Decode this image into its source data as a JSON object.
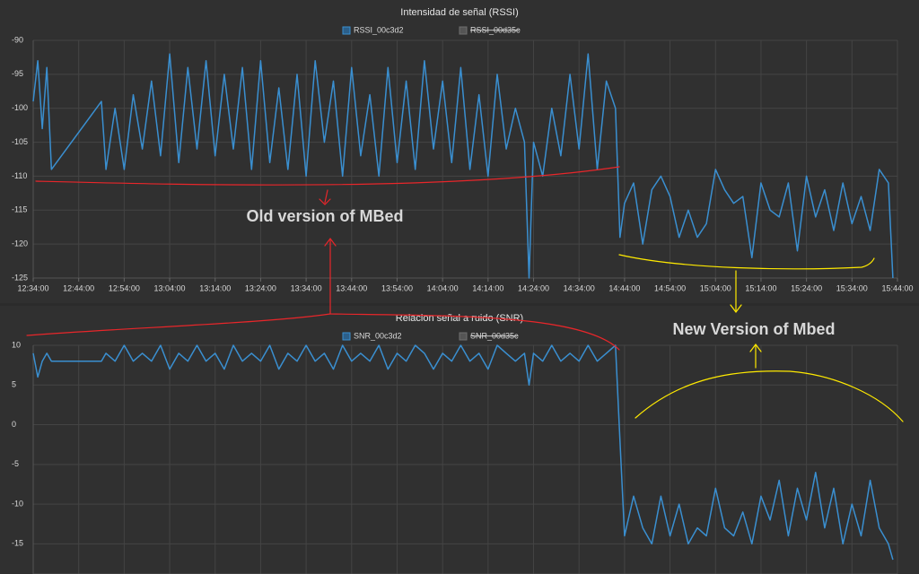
{
  "chart_data": [
    {
      "type": "line",
      "title": "Intensidad de señal (RSSI)",
      "x": [
        "12:34:00",
        "12:35:00",
        "12:36:00",
        "12:37:00",
        "12:38:00",
        "12:49:00",
        "12:50:00",
        "12:52:00",
        "12:54:00",
        "12:56:00",
        "12:58:00",
        "13:00:00",
        "13:02:00",
        "13:04:00",
        "13:06:00",
        "13:08:00",
        "13:10:00",
        "13:12:00",
        "13:14:00",
        "13:16:00",
        "13:18:00",
        "13:20:00",
        "13:22:00",
        "13:24:00",
        "13:26:00",
        "13:28:00",
        "13:30:00",
        "13:32:00",
        "13:34:00",
        "13:36:00",
        "13:38:00",
        "13:40:00",
        "13:42:00",
        "13:44:00",
        "13:46:00",
        "13:48:00",
        "13:50:00",
        "13:52:00",
        "13:54:00",
        "13:56:00",
        "13:58:00",
        "14:00:00",
        "14:02:00",
        "14:04:00",
        "14:06:00",
        "14:08:00",
        "14:10:00",
        "14:12:00",
        "14:14:00",
        "14:16:00",
        "14:18:00",
        "14:20:00",
        "14:22:00",
        "14:23:00",
        "14:24:00",
        "14:26:00",
        "14:28:00",
        "14:30:00",
        "14:32:00",
        "14:34:00",
        "14:36:00",
        "14:38:00",
        "14:40:00",
        "14:42:00",
        "14:43:00",
        "14:44:00",
        "14:46:00",
        "14:48:00",
        "14:50:00",
        "14:52:00",
        "14:54:00",
        "14:56:00",
        "14:58:00",
        "15:00:00",
        "15:02:00",
        "15:04:00",
        "15:06:00",
        "15:08:00",
        "15:10:00",
        "15:12:00",
        "15:14:00",
        "15:16:00",
        "15:18:00",
        "15:20:00",
        "15:22:00",
        "15:24:00",
        "15:26:00",
        "15:28:00",
        "15:30:00",
        "15:32:00",
        "15:34:00",
        "15:36:00",
        "15:38:00",
        "15:40:00",
        "15:42:00",
        "15:43:00"
      ],
      "series": [
        {
          "name": "RSSI_00c3d2",
          "color": "#3a8fd0",
          "values": [
            -99,
            -93,
            -103,
            -94,
            -109,
            -99,
            -109,
            -100,
            -109,
            -98,
            -106,
            -96,
            -107,
            -92,
            -108,
            -94,
            -106,
            -93,
            -107,
            -95,
            -106,
            -94,
            -109,
            -93,
            -108,
            -97,
            -109,
            -95,
            -110,
            -93,
            -105,
            -96,
            -110,
            -94,
            -107,
            -98,
            -110,
            -94,
            -108,
            -96,
            -109,
            -93,
            -106,
            -96,
            -108,
            -94,
            -109,
            -98,
            -110,
            -95,
            -106,
            -100,
            -105,
            -125,
            -105,
            -110,
            -100,
            -107,
            -95,
            -106,
            -92,
            -109,
            -96,
            -100,
            -119,
            -114,
            -111,
            -120,
            -112,
            -110,
            -113,
            -119,
            -115,
            -119,
            -117,
            -109,
            -112,
            -114,
            -113,
            -122,
            -111,
            -115,
            -116,
            -111,
            -121,
            -110,
            -116,
            -112,
            -118,
            -111,
            -117,
            -113,
            -118,
            -109,
            -111,
            -125
          ]
        },
        {
          "name": "RSSI_00d35c",
          "color": "#6e6e6e",
          "hidden": true
        }
      ],
      "xlim": [
        "12:34:00",
        "15:44:00"
      ],
      "xticks": [
        "12:34:00",
        "12:44:00",
        "12:54:00",
        "13:04:00",
        "13:14:00",
        "13:24:00",
        "13:34:00",
        "13:44:00",
        "13:54:00",
        "14:04:00",
        "14:14:00",
        "14:24:00",
        "14:34:00",
        "14:44:00",
        "14:54:00",
        "15:04:00",
        "15:14:00",
        "15:24:00",
        "15:34:00",
        "15:44:00"
      ],
      "ylim": [
        -125,
        -90
      ],
      "yticks": [
        -90,
        -95,
        -100,
        -105,
        -110,
        -115,
        -120,
        -125
      ],
      "grid": true,
      "legend": "top"
    },
    {
      "type": "line",
      "title": "Relacion señal a ruido (SNR)",
      "x": [
        "12:34:00",
        "12:35:00",
        "12:36:00",
        "12:37:00",
        "12:38:00",
        "12:49:00",
        "12:50:00",
        "12:52:00",
        "12:54:00",
        "12:56:00",
        "12:58:00",
        "13:00:00",
        "13:02:00",
        "13:04:00",
        "13:06:00",
        "13:08:00",
        "13:10:00",
        "13:12:00",
        "13:14:00",
        "13:16:00",
        "13:18:00",
        "13:20:00",
        "13:22:00",
        "13:24:00",
        "13:26:00",
        "13:28:00",
        "13:30:00",
        "13:32:00",
        "13:34:00",
        "13:36:00",
        "13:38:00",
        "13:40:00",
        "13:42:00",
        "13:44:00",
        "13:46:00",
        "13:48:00",
        "13:50:00",
        "13:52:00",
        "13:54:00",
        "13:56:00",
        "13:58:00",
        "14:00:00",
        "14:02:00",
        "14:04:00",
        "14:06:00",
        "14:08:00",
        "14:10:00",
        "14:12:00",
        "14:14:00",
        "14:16:00",
        "14:18:00",
        "14:20:00",
        "14:22:00",
        "14:23:00",
        "14:24:00",
        "14:26:00",
        "14:28:00",
        "14:30:00",
        "14:32:00",
        "14:34:00",
        "14:36:00",
        "14:38:00",
        "14:40:00",
        "14:42:00",
        "14:43:00",
        "14:44:00",
        "14:46:00",
        "14:48:00",
        "14:50:00",
        "14:52:00",
        "14:54:00",
        "14:56:00",
        "14:58:00",
        "15:00:00",
        "15:02:00",
        "15:04:00",
        "15:06:00",
        "15:08:00",
        "15:10:00",
        "15:12:00",
        "15:14:00",
        "15:16:00",
        "15:18:00",
        "15:20:00",
        "15:22:00",
        "15:24:00",
        "15:26:00",
        "15:28:00",
        "15:30:00",
        "15:32:00",
        "15:34:00",
        "15:36:00",
        "15:38:00",
        "15:40:00",
        "15:42:00",
        "15:43:00"
      ],
      "series": [
        {
          "name": "SNR_00c3d2",
          "color": "#3a8fd0",
          "values": [
            9,
            6,
            8,
            9,
            8,
            8,
            9,
            8,
            10,
            8,
            9,
            8,
            10,
            7,
            9,
            8,
            10,
            8,
            9,
            7,
            10,
            8,
            9,
            8,
            10,
            7,
            9,
            8,
            10,
            8,
            9,
            7,
            10,
            8,
            9,
            8,
            10,
            7,
            9,
            8,
            10,
            9,
            7,
            9,
            8,
            10,
            8,
            9,
            7,
            10,
            9,
            8,
            9,
            5,
            9,
            8,
            10,
            8,
            9,
            8,
            10,
            8,
            9,
            10,
            -2,
            -14,
            -9,
            -13,
            -15,
            -9,
            -14,
            -10,
            -15,
            -13,
            -14,
            -8,
            -13,
            -14,
            -11,
            -15,
            -9,
            -12,
            -7,
            -14,
            -8,
            -12,
            -6,
            -13,
            -8,
            -15,
            -10,
            -14,
            -7,
            -13,
            -15,
            -17
          ]
        },
        {
          "name": "SNR_00d35c",
          "color": "#6e6e6e",
          "hidden": true
        }
      ],
      "xlim": [
        "12:34:00",
        "15:44:00"
      ],
      "ylim": [
        -18.8,
        10
      ],
      "yticks": [
        10,
        5,
        0,
        -5,
        -10,
        -15
      ],
      "grid": true,
      "legend": "top"
    }
  ],
  "annotations": [
    {
      "text": "Old version of MBed",
      "color": "#e8262a"
    },
    {
      "text": "New Version of Mbed",
      "color": "#ffea00"
    }
  ]
}
